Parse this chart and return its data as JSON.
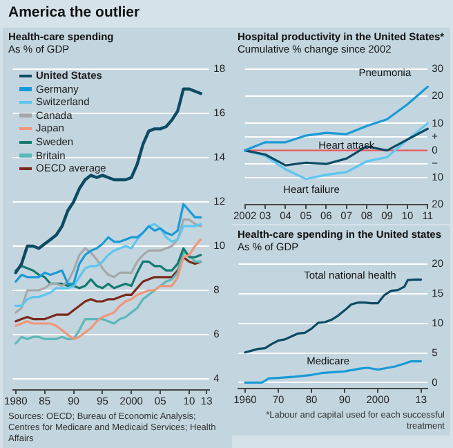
{
  "chart_data": [
    {
      "type": "line",
      "title": "Health-care spending",
      "subtitle": "As % of GDP",
      "x": [
        1980,
        1981,
        1982,
        1983,
        1984,
        1985,
        1986,
        1987,
        1988,
        1989,
        1990,
        1991,
        1992,
        1993,
        1994,
        1995,
        1996,
        1997,
        1998,
        1999,
        2000,
        2001,
        2002,
        2003,
        2004,
        2005,
        2006,
        2007,
        2008,
        2009,
        2010,
        2011,
        2012
      ],
      "series": [
        {
          "name": "United States",
          "color": "#0d4a63",
          "values": [
            8.8,
            9.2,
            10.0,
            10.0,
            9.9,
            10.1,
            10.3,
            10.5,
            10.9,
            11.6,
            12.0,
            12.6,
            13.0,
            13.2,
            13.1,
            13.2,
            13.1,
            13.0,
            13.0,
            13.0,
            13.1,
            13.7,
            14.6,
            15.2,
            15.3,
            15.3,
            15.4,
            15.7,
            16.1,
            17.1,
            17.1,
            17.0,
            16.9
          ]
        },
        {
          "name": "Germany",
          "color": "#1a9ad6",
          "values": [
            8.4,
            8.7,
            8.6,
            8.6,
            8.6,
            8.8,
            8.7,
            8.8,
            8.9,
            8.3,
            8.3,
            9.2,
            9.6,
            9.8,
            9.9,
            10.1,
            10.4,
            10.2,
            10.2,
            10.3,
            10.4,
            10.4,
            10.6,
            10.9,
            10.7,
            10.8,
            10.6,
            10.5,
            10.7,
            11.9,
            11.6,
            11.3,
            11.3
          ]
        },
        {
          "name": "Switzerland",
          "color": "#5dc6ef",
          "values": [
            7.3,
            7.3,
            7.6,
            7.7,
            7.7,
            7.8,
            7.9,
            8.1,
            8.1,
            8.1,
            8.2,
            8.6,
            9.0,
            9.1,
            9.1,
            9.3,
            9.6,
            9.8,
            9.9,
            10.0,
            9.9,
            10.3,
            10.6,
            10.9,
            11.0,
            10.8,
            10.4,
            10.2,
            10.3,
            10.9,
            10.9,
            10.9,
            11.0
          ]
        },
        {
          "name": "Canada",
          "color": "#a5a8aa",
          "values": [
            7.0,
            7.2,
            8.0,
            8.0,
            8.0,
            8.1,
            8.3,
            8.3,
            8.2,
            8.4,
            8.9,
            9.6,
            9.9,
            9.7,
            9.4,
            9.0,
            8.7,
            8.6,
            8.8,
            8.8,
            8.8,
            9.3,
            9.6,
            9.8,
            9.8,
            9.8,
            9.9,
            10.0,
            10.3,
            11.2,
            11.2,
            11.0,
            10.9
          ]
        },
        {
          "name": "Japan",
          "color": "#f0967a",
          "values": [
            6.4,
            6.5,
            6.6,
            6.5,
            6.5,
            6.5,
            6.5,
            6.4,
            6.2,
            6.0,
            5.8,
            5.9,
            6.1,
            6.3,
            6.6,
            6.8,
            6.9,
            7.0,
            7.3,
            7.5,
            7.6,
            7.8,
            7.9,
            8.0,
            8.0,
            8.2,
            8.2,
            8.2,
            8.6,
            9.5,
            9.6,
            10.0,
            10.3
          ]
        },
        {
          "name": "Sweden",
          "color": "#127a6e",
          "values": [
            8.9,
            9.1,
            9.0,
            8.9,
            8.7,
            8.6,
            8.3,
            8.3,
            8.3,
            8.2,
            8.2,
            8.1,
            8.2,
            8.5,
            8.2,
            8.1,
            8.3,
            8.1,
            8.2,
            8.3,
            8.2,
            8.8,
            9.3,
            9.3,
            9.1,
            9.1,
            8.9,
            8.9,
            9.2,
            9.9,
            9.5,
            9.5,
            9.6
          ]
        },
        {
          "name": "Britain",
          "color": "#5bb8b8",
          "values": [
            5.6,
            5.9,
            5.8,
            5.9,
            5.9,
            5.8,
            5.8,
            5.8,
            5.9,
            5.8,
            5.8,
            6.2,
            6.7,
            6.7,
            6.7,
            6.7,
            6.6,
            6.5,
            6.7,
            6.8,
            7.0,
            7.2,
            7.6,
            7.8,
            8.0,
            8.2,
            8.4,
            8.5,
            8.8,
            9.7,
            9.6,
            9.3,
            9.3
          ]
        },
        {
          "name": "OECD average",
          "color": "#7a2a1c",
          "values": [
            6.6,
            6.7,
            6.8,
            6.7,
            6.7,
            6.7,
            6.8,
            6.9,
            6.9,
            6.9,
            7.1,
            7.3,
            7.5,
            7.6,
            7.5,
            7.5,
            7.6,
            7.6,
            7.7,
            7.8,
            7.8,
            8.1,
            8.4,
            8.5,
            8.6,
            8.6,
            8.6,
            8.6,
            8.9,
            9.5,
            9.3,
            9.2,
            9.3
          ]
        }
      ],
      "xlim": [
        1979.5,
        2013.5
      ],
      "xticks": [
        {
          "value": 1980,
          "label": "1980"
        },
        {
          "value": 1985,
          "label": "85"
        },
        {
          "value": 1990,
          "label": "90"
        },
        {
          "value": 1995,
          "label": "95"
        },
        {
          "value": 2000,
          "label": "2000"
        },
        {
          "value": 2005,
          "label": "05"
        },
        {
          "value": 2010,
          "label": "10"
        },
        {
          "value": 2013,
          "label": "13"
        }
      ],
      "ylim": [
        3.5,
        18
      ],
      "yticks": [
        4,
        6,
        8,
        10,
        12,
        14,
        16,
        18
      ],
      "grid": "y",
      "legend": "top left",
      "annotations": [
        "America the outlier",
        "Sources: OECD; Bureau of Economic Analysis; Centres for Medicare and Medicaid Services; Health Affairs"
      ]
    },
    {
      "type": "line",
      "title": "Hospital productivity in the United States*",
      "subtitle": "Cumulative % change since 2002",
      "categories": [
        "2002",
        "03",
        "04",
        "05",
        "06",
        "07",
        "08",
        "09",
        "10",
        "11"
      ],
      "series": [
        {
          "name": "Pneumonia",
          "color": "#1a9ad6",
          "values": [
            0,
            3,
            3,
            5.5,
            6.5,
            6,
            9,
            11.5,
            17,
            23.5
          ]
        },
        {
          "name": "Heart attack",
          "color": "#0d4a63",
          "values": [
            0,
            -1.5,
            -5.5,
            -4.5,
            -5,
            -3,
            1.5,
            0,
            4,
            8
          ]
        },
        {
          "name": "Heart failure",
          "color": "#5dc6ef",
          "values": [
            0,
            -2,
            -7,
            -10.5,
            -9,
            -8,
            -4,
            -2.5,
            4,
            10
          ]
        }
      ],
      "ylim": [
        -20,
        30
      ],
      "yticks": [
        30,
        20,
        10,
        {
          "value": 5,
          "label": "+"
        },
        0,
        {
          "value": -5,
          "label": "−"
        },
        {
          "value": -10,
          "label": "10"
        },
        {
          "value": -20,
          "label": "20"
        }
      ],
      "grid": "y",
      "ref_lines": [
        {
          "axis": "y",
          "value": 0,
          "color": "#e0585b"
        }
      ]
    },
    {
      "type": "line",
      "title": "Health-care spending in the United states",
      "subtitle": "As % of GDP",
      "series": [
        {
          "name": "Total national health",
          "color": "#0d4a63",
          "x": [
            1960,
            1962,
            1964,
            1966,
            1968,
            1970,
            1972,
            1974,
            1976,
            1978,
            1980,
            1982,
            1984,
            1986,
            1988,
            1990,
            1992,
            1994,
            1996,
            1998,
            2000,
            2002,
            2004,
            2006,
            2008,
            2009,
            2011,
            2013
          ],
          "values": [
            5.1,
            5.4,
            5.7,
            5.8,
            6.5,
            7.1,
            7.3,
            7.8,
            8.3,
            8.4,
            9.1,
            10.1,
            10.2,
            10.6,
            11.3,
            12.2,
            13.2,
            13.5,
            13.5,
            13.4,
            13.4,
            14.8,
            15.5,
            15.6,
            16.2,
            17.3,
            17.4,
            17.4
          ]
        },
        {
          "name": "Medicare",
          "color": "#1a9ad6",
          "x": [
            1960,
            1965,
            1966,
            1967,
            1970,
            1975,
            1980,
            1983,
            1985,
            1990,
            1995,
            1997,
            2000,
            2003,
            2005,
            2008,
            2010,
            2013
          ],
          "values": [
            0,
            0,
            0.3,
            0.7,
            0.8,
            1.0,
            1.3,
            1.6,
            1.7,
            1.9,
            2.4,
            2.5,
            2.2,
            2.5,
            2.7,
            3.2,
            3.6,
            3.6
          ]
        }
      ],
      "xlim": [
        1958,
        2015
      ],
      "xticks": [
        {
          "value": 1960,
          "label": "1960"
        },
        {
          "value": 1970,
          "label": "70"
        },
        {
          "value": 1980,
          "label": "80"
        },
        {
          "value": 1990,
          "label": "90"
        },
        {
          "value": 2000,
          "label": "2000"
        },
        {
          "value": 2013,
          "label": "13"
        }
      ],
      "ylim": [
        -1,
        20
      ],
      "yticks": [
        0,
        5,
        10,
        15,
        20
      ],
      "grid": "y",
      "annotations": [
        "*Labour and capital used for each successful treatment"
      ]
    }
  ]
}
